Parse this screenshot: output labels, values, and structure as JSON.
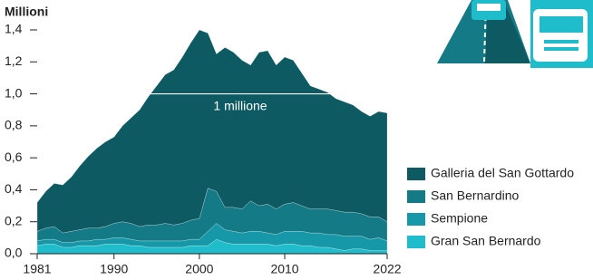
{
  "chart_data": {
    "type": "stacked_area",
    "y_axis_label": "Millioni",
    "x": [
      1981,
      1982,
      1983,
      1984,
      1985,
      1986,
      1987,
      1988,
      1989,
      1990,
      1991,
      1992,
      1993,
      1994,
      1995,
      1996,
      1997,
      1998,
      1999,
      2000,
      2001,
      2002,
      2003,
      2004,
      2005,
      2006,
      2007,
      2008,
      2009,
      2010,
      2011,
      2012,
      2013,
      2014,
      2015,
      2016,
      2017,
      2018,
      2019,
      2020,
      2021,
      2022
    ],
    "series": [
      {
        "name": "Galleria del San Gottardo",
        "color": "#0e5a62",
        "values": [
          0.18,
          0.23,
          0.27,
          0.3,
          0.34,
          0.4,
          0.45,
          0.5,
          0.53,
          0.54,
          0.6,
          0.66,
          0.73,
          0.8,
          0.87,
          0.93,
          0.97,
          1.04,
          1.11,
          1.18,
          0.97,
          0.86,
          1.0,
          0.97,
          0.93,
          0.85,
          0.96,
          0.96,
          0.9,
          0.92,
          0.89,
          0.83,
          0.77,
          0.75,
          0.73,
          0.7,
          0.69,
          0.67,
          0.64,
          0.63,
          0.66,
          0.68
        ]
      },
      {
        "name": "San Bernardino",
        "color": "#137a86",
        "values": [
          0.06,
          0.07,
          0.08,
          0.06,
          0.07,
          0.07,
          0.08,
          0.07,
          0.08,
          0.09,
          0.1,
          0.1,
          0.09,
          0.1,
          0.1,
          0.11,
          0.1,
          0.11,
          0.12,
          0.13,
          0.27,
          0.2,
          0.14,
          0.15,
          0.15,
          0.19,
          0.16,
          0.18,
          0.16,
          0.17,
          0.18,
          0.16,
          0.15,
          0.15,
          0.16,
          0.15,
          0.15,
          0.15,
          0.14,
          0.14,
          0.13,
          0.12
        ]
      },
      {
        "name": "Sempione",
        "color": "#1798a8",
        "values": [
          0.03,
          0.03,
          0.03,
          0.03,
          0.03,
          0.03,
          0.03,
          0.04,
          0.03,
          0.04,
          0.04,
          0.04,
          0.03,
          0.04,
          0.04,
          0.04,
          0.04,
          0.04,
          0.04,
          0.04,
          0.09,
          0.1,
          0.08,
          0.08,
          0.07,
          0.08,
          0.08,
          0.07,
          0.07,
          0.08,
          0.08,
          0.09,
          0.08,
          0.09,
          0.08,
          0.09,
          0.09,
          0.08,
          0.08,
          0.07,
          0.08,
          0.06
        ]
      },
      {
        "name": "Gran San Bernardo",
        "color": "#1fbccb",
        "values": [
          0.05,
          0.06,
          0.06,
          0.04,
          0.04,
          0.05,
          0.05,
          0.05,
          0.06,
          0.06,
          0.06,
          0.05,
          0.05,
          0.04,
          0.04,
          0.04,
          0.04,
          0.04,
          0.05,
          0.05,
          0.05,
          0.09,
          0.07,
          0.06,
          0.06,
          0.06,
          0.06,
          0.06,
          0.05,
          0.06,
          0.06,
          0.05,
          0.05,
          0.04,
          0.04,
          0.03,
          0.02,
          0.03,
          0.03,
          0.02,
          0.02,
          0.02
        ]
      }
    ],
    "xlim": [
      1981,
      2022
    ],
    "xticks": [
      1981,
      1990,
      2000,
      2010,
      2022
    ],
    "ylim": [
      0,
      1.4
    ],
    "yticks": [
      {
        "value": 0,
        "label": "0,0"
      },
      {
        "value": 0.2,
        "label": "0,2"
      },
      {
        "value": 0.4,
        "label": "0,4"
      },
      {
        "value": 0.6,
        "label": "0,6"
      },
      {
        "value": 0.8,
        "label": "0,8"
      },
      {
        "value": 1,
        "label": "1,0"
      },
      {
        "value": 1.2,
        "label": "1,2"
      },
      {
        "value": 1.4,
        "label": "1,4"
      }
    ],
    "grid": false,
    "annotation": {
      "text": "1 millione",
      "value": 1
    }
  }
}
